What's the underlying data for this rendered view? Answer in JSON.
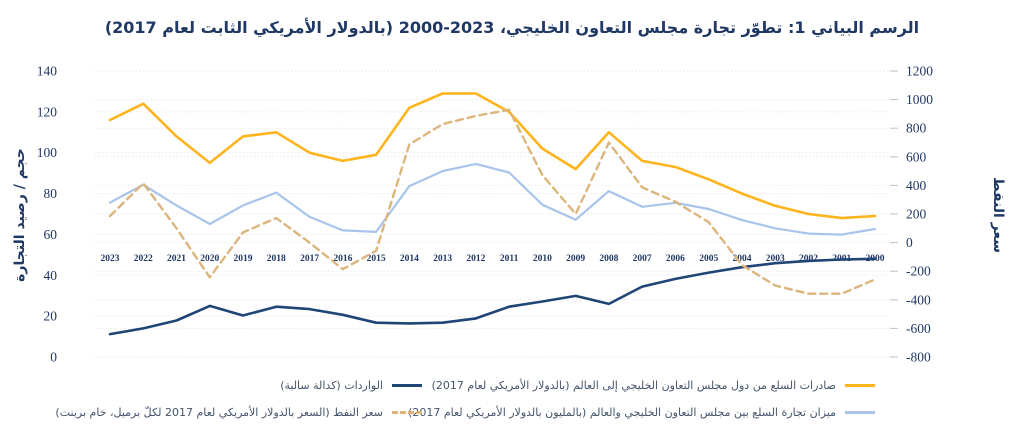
{
  "chart_data": {
    "type": "line",
    "title": "الرسم البياني 1: تطوّر تجارة مجلس التعاون الخليجي، 2023-2000 (بالدولار الأمريكي الثابت لعام 2017)",
    "x_categories": [
      "2023",
      "2022",
      "2021",
      "2020",
      "2019",
      "2018",
      "2017",
      "2016",
      "2015",
      "2014",
      "2013",
      "2012",
      "2011",
      "2010",
      "2009",
      "2008",
      "2007",
      "2006",
      "2005",
      "2004",
      "2003",
      "2002",
      "2001",
      "2000"
    ],
    "x_note": "categories run right-to-left in time (2023 at left edge, 2000 at right edge)",
    "left_axis": {
      "label": "حجم / رصيد التجارة",
      "min": 0,
      "max": 140,
      "ticks": [
        140,
        120,
        100,
        80,
        60,
        40,
        20,
        0
      ]
    },
    "right_axis": {
      "label": "سعر النفط",
      "min": -800,
      "max": 1200,
      "ticks": [
        1200,
        1000,
        800,
        600,
        400,
        200,
        0,
        -200,
        -400,
        -600,
        -800
      ]
    },
    "grid": true,
    "legend_position": "bottom",
    "series": [
      {
        "id": "exports",
        "name": "صادرات السلع من دول مجلس التعاون الخليجي إلى العالم (بالدولار الأمريكي لعام 2017)",
        "axis": "left",
        "color": "#FFB41C",
        "style": "solid",
        "values": [
          116,
          124,
          108,
          95,
          108,
          110,
          100,
          96,
          99,
          122,
          129,
          129,
          120,
          102,
          92,
          110,
          96,
          93,
          87,
          80,
          74,
          70,
          68,
          69
        ]
      },
      {
        "id": "trade-balance",
        "name": "ميزان تجارة السلع بين مجلس التعاون الخليجي والعالم (بالمليون بالدولار الأمريكي لعام 2017)",
        "axis": "right",
        "color": "#A8C4EA",
        "style": "solid",
        "values": [
          280,
          405,
          260,
          130,
          260,
          350,
          180,
          85,
          75,
          395,
          500,
          550,
          490,
          265,
          160,
          360,
          250,
          278,
          235,
          157,
          100,
          63,
          56,
          95
        ]
      },
      {
        "id": "imports",
        "name": "الواردات (كدالة سالبة)",
        "axis": "right",
        "color": "#1F4577",
        "style": "solid",
        "values": [
          -640,
          -600,
          -545,
          -443,
          -510,
          -448,
          -465,
          -505,
          -560,
          -565,
          -560,
          -530,
          -448,
          -412,
          -373,
          -429,
          -308,
          -254,
          -210,
          -172,
          -144,
          -128,
          -118,
          -113
        ]
      },
      {
        "id": "oil-price",
        "name": "سعر النفط (السعر بالدولار الأمريكي لعام 2017 لكلّ برميل، خام برينت)",
        "axis": "left",
        "color": "#DCB57D",
        "style": "dashed",
        "values": [
          69,
          85,
          63,
          39,
          61,
          68,
          56,
          43,
          52,
          104,
          114,
          118,
          121,
          89,
          70,
          105,
          83,
          76,
          66,
          45,
          35,
          31,
          31,
          38
        ]
      }
    ],
    "colors": {
      "title_text": "#1f3864",
      "axis_text": "#1f3864",
      "legend_text": "#44546A",
      "gridline": "#e9e9e9",
      "tick_mark": "#bfbfbf"
    }
  }
}
